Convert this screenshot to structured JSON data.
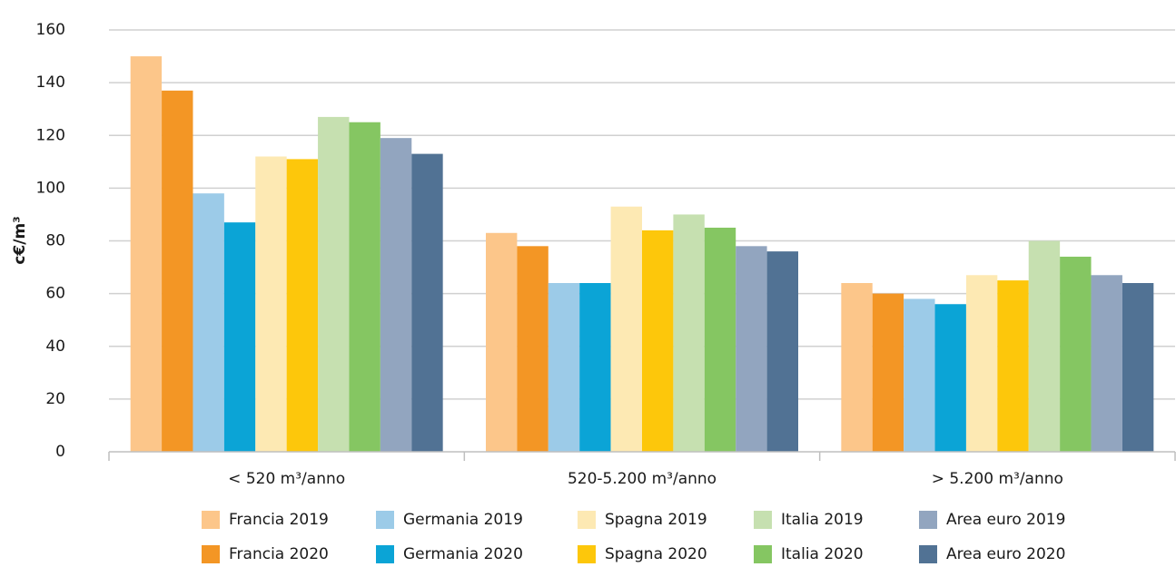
{
  "chart_data": {
    "type": "bar",
    "y_label": "c€/m³",
    "categories": [
      "< 520 m³/anno",
      "520-5.200 m³/anno",
      "> 5.200 m³/anno"
    ],
    "series": [
      {
        "name": "Francia 2019",
        "color": "#fcc68a",
        "values": [
          150,
          83,
          64
        ]
      },
      {
        "name": "Francia 2020",
        "color": "#f39625",
        "values": [
          137,
          78,
          60
        ]
      },
      {
        "name": "Germania 2019",
        "color": "#9ccbe8",
        "values": [
          98,
          64,
          58
        ]
      },
      {
        "name": "Germania 2020",
        "color": "#0ba4d6",
        "values": [
          87,
          64,
          56
        ]
      },
      {
        "name": "Spagna 2019",
        "color": "#fde9b3",
        "values": [
          112,
          93,
          67
        ]
      },
      {
        "name": "Spagna 2020",
        "color": "#fdc70b",
        "values": [
          111,
          84,
          65
        ]
      },
      {
        "name": "Italia 2019",
        "color": "#c6e0b0",
        "values": [
          127,
          90,
          80
        ]
      },
      {
        "name": "Italia 2020",
        "color": "#85c662",
        "values": [
          125,
          85,
          74
        ]
      },
      {
        "name": "Area euro 2019",
        "color": "#92a5bf",
        "values": [
          119,
          78,
          67
        ]
      },
      {
        "name": "Area euro 2020",
        "color": "#517294",
        "values": [
          113,
          76,
          64
        ]
      }
    ],
    "ylim": [
      0,
      160
    ],
    "yticks": [
      0,
      20,
      40,
      60,
      80,
      100,
      120,
      140,
      160
    ],
    "grid": true
  }
}
